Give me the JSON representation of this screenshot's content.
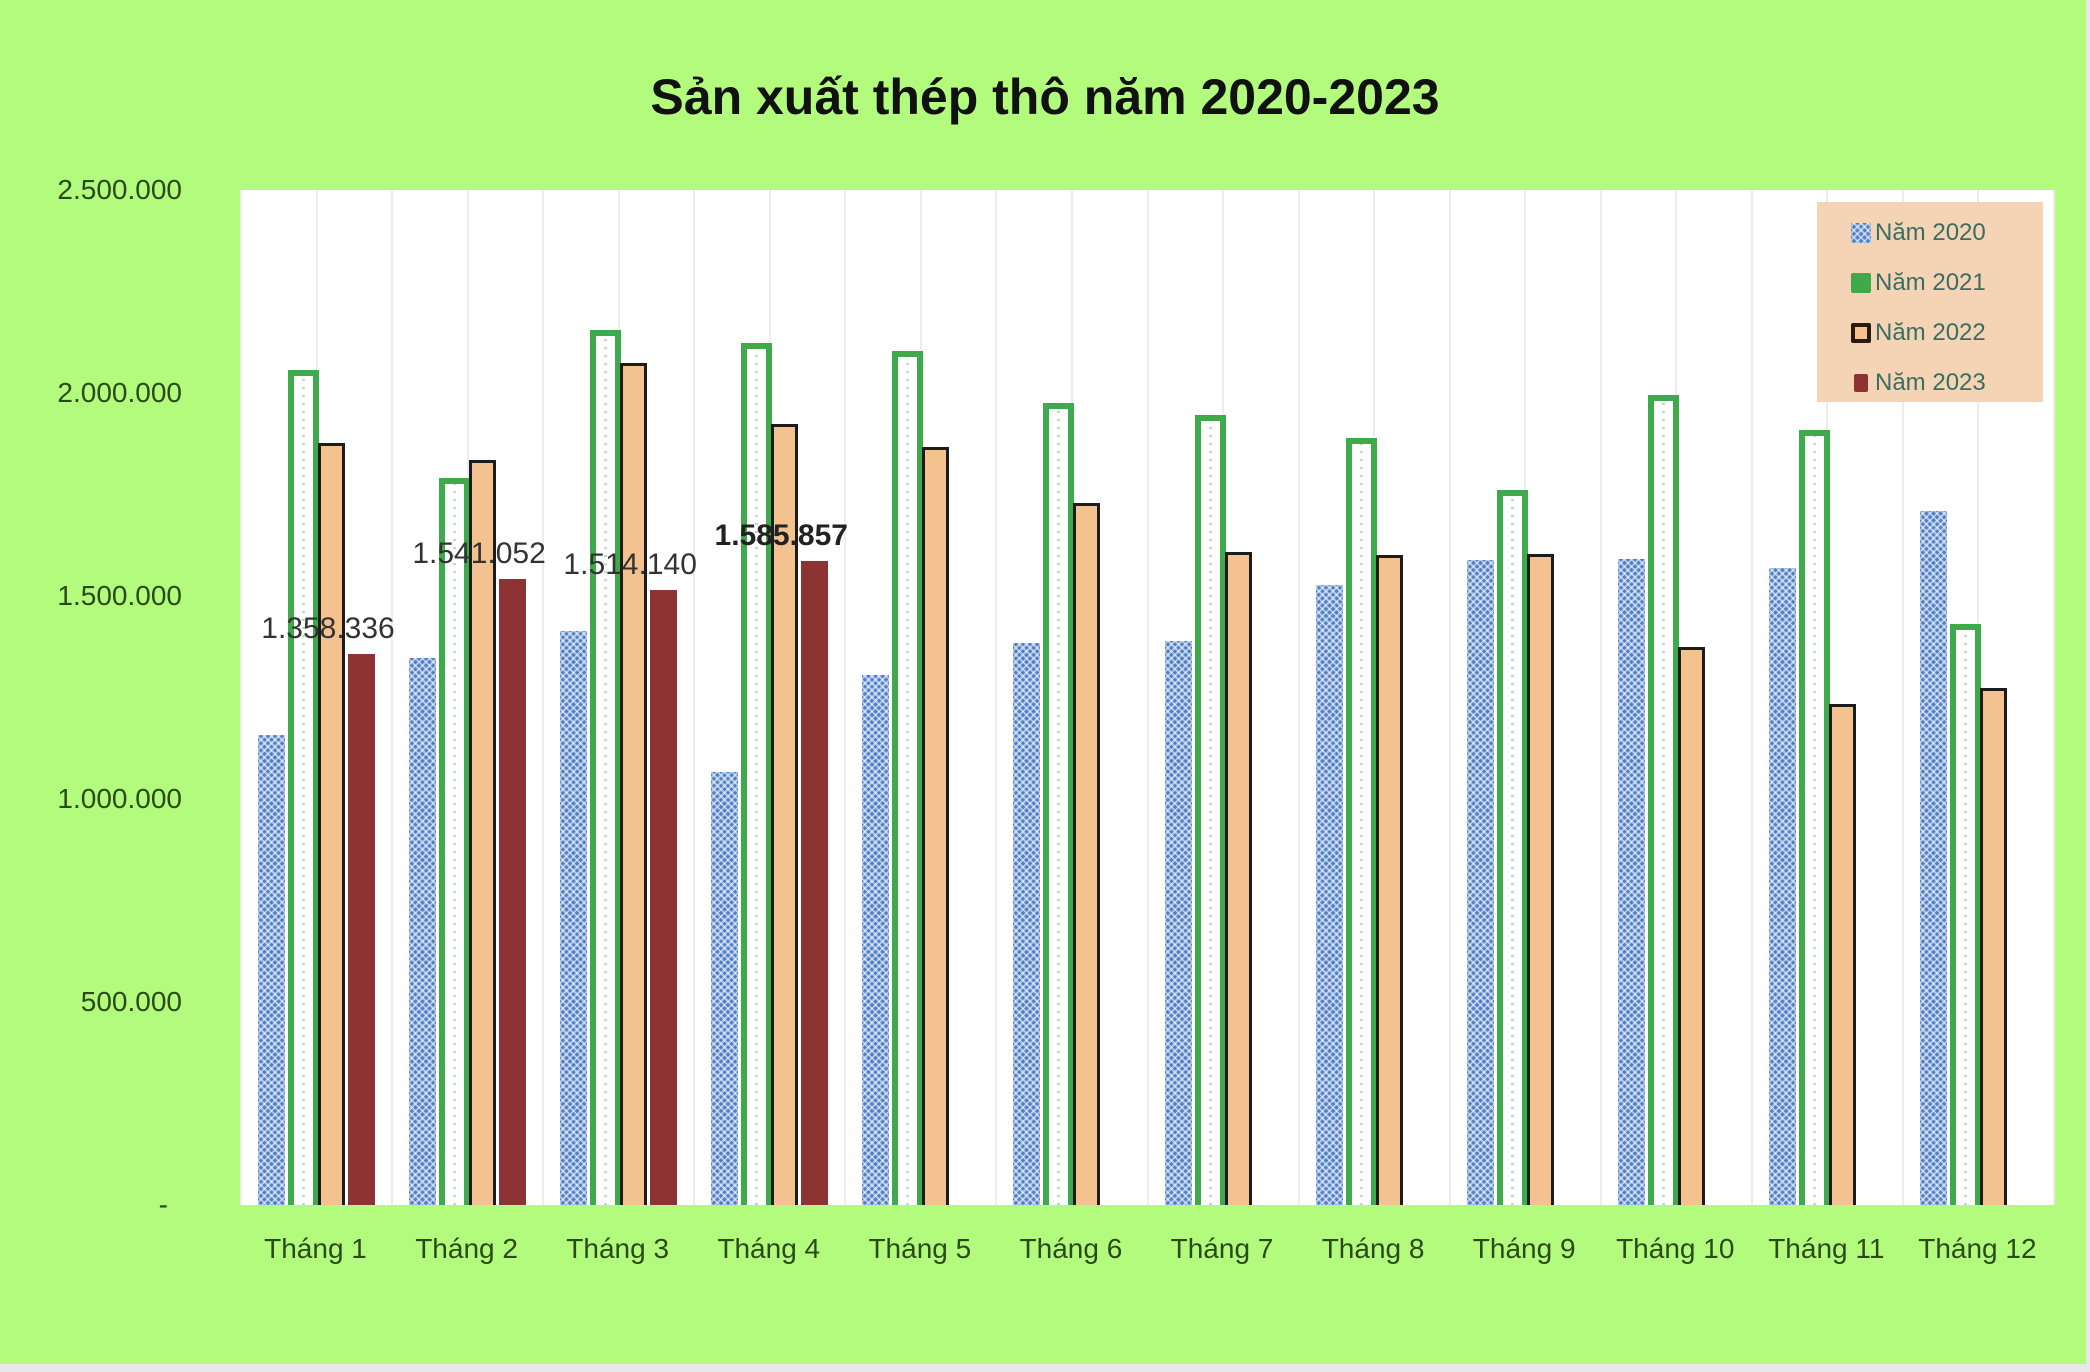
{
  "chart_data": {
    "type": "bar",
    "title": "Sản xuất thép thô năm 2020-2023",
    "xlabel": "",
    "ylabel": "",
    "ylim": [
      0,
      2500000
    ],
    "yticks": [
      "-",
      "500.000",
      "1.000.000",
      "1.500.000",
      "2.000.000",
      "2.500.000"
    ],
    "ytick_values": [
      0,
      500000,
      1000000,
      1500000,
      2000000,
      2500000
    ],
    "grid": "vertical lines at category boundaries",
    "legend_position": "top-right inside plot",
    "categories": [
      "Tháng 1",
      "Tháng 2",
      "Tháng 3",
      "Tháng 4",
      "Tháng 5",
      "Tháng 6",
      "Tháng 7",
      "Tháng 8",
      "Tháng 9",
      "Tháng 10",
      "Tháng 11",
      "Tháng 12"
    ],
    "series": [
      {
        "name": "Năm 2020",
        "color": "#4f7fc6",
        "values": [
          1158000,
          1348000,
          1414000,
          1066000,
          1306000,
          1385000,
          1388000,
          1526000,
          1588000,
          1591000,
          1568000,
          1709000
        ]
      },
      {
        "name": "Năm 2021",
        "color": "#3eaa4c",
        "values": [
          2057000,
          1791000,
          2156000,
          2123000,
          2103000,
          1975000,
          1946000,
          1890000,
          1762000,
          1995000,
          1909000,
          1430000
        ]
      },
      {
        "name": "Năm 2022",
        "color": "#f4c28f",
        "values": [
          1877000,
          1834000,
          2074000,
          1923000,
          1867000,
          1729000,
          1608000,
          1601000,
          1604000,
          1375000,
          1234000,
          1273000
        ]
      },
      {
        "name": "Năm 2023",
        "color": "#8e3333",
        "values": [
          1358336,
          1541052,
          1514140,
          1585857,
          null,
          null,
          null,
          null,
          null,
          null,
          null,
          null
        ]
      }
    ],
    "data_labels": [
      {
        "series": "Năm 2023",
        "category": "Tháng 1",
        "text": "1.358.336"
      },
      {
        "series": "Năm 2023",
        "category": "Tháng 2",
        "text": "1.541.052"
      },
      {
        "series": "Năm 2023",
        "category": "Tháng 3",
        "text": "1.514.140"
      },
      {
        "series": "Năm 2023",
        "category": "Tháng 4",
        "text": "1.585.857",
        "bold": true
      }
    ]
  },
  "legend": {
    "items": [
      {
        "label": "Năm 2020"
      },
      {
        "label": "Năm 2021"
      },
      {
        "label": "Năm 2022"
      },
      {
        "label": "Năm 2023"
      }
    ]
  }
}
